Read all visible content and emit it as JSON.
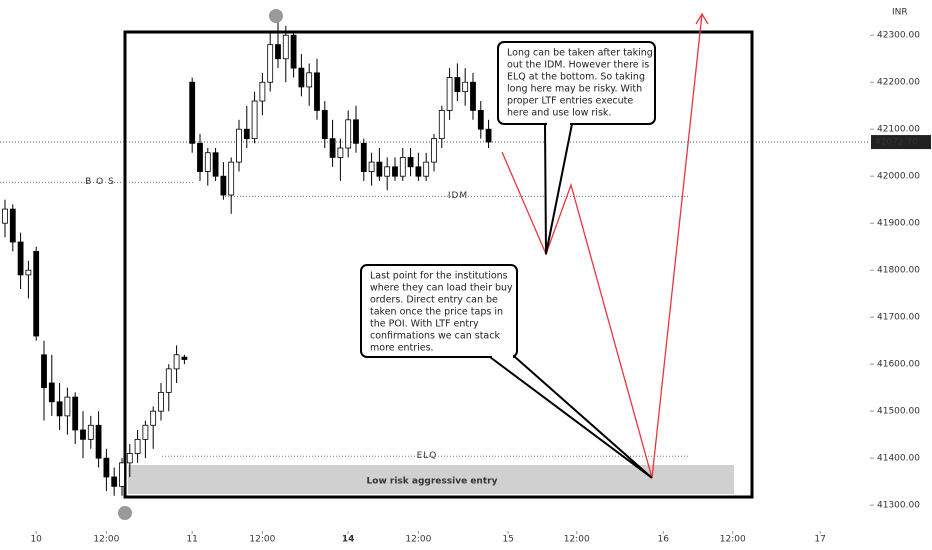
{
  "chart_data": {
    "type": "candlestick",
    "currency": "INR",
    "open": [
      41900,
      41930,
      41860,
      41790,
      41840,
      41620,
      41560,
      41520,
      41490,
      41530,
      41460,
      41440,
      41470,
      41400,
      41360,
      41340,
      41390,
      41410,
      41440,
      41470,
      41500,
      41540,
      41590,
      41615,
      42200,
      42070,
      42010,
      42050,
      42000,
      41960,
      42030,
      42100,
      42080,
      42160,
      42200,
      42280,
      42250,
      42300,
      42230,
      42190,
      42220,
      42140,
      42080,
      42040,
      42060,
      42120,
      42070,
      42010,
      42030,
      42000,
      42020,
      42000,
      42040,
      42020,
      42000,
      42030,
      42080,
      42140,
      42210,
      42180,
      42200,
      42140,
      42100
    ],
    "high": [
      41950,
      41940,
      41880,
      41820,
      41850,
      41650,
      41620,
      41560,
      41550,
      41540,
      41500,
      41490,
      41500,
      41420,
      41380,
      41400,
      41430,
      41460,
      41480,
      41510,
      41560,
      41600,
      41640,
      41620,
      42210,
      42090,
      42060,
      42060,
      42030,
      42040,
      42120,
      42150,
      42180,
      42220,
      42310,
      42340,
      42320,
      42310,
      42260,
      42240,
      42250,
      42160,
      42120,
      42080,
      42140,
      42150,
      42080,
      42050,
      42060,
      42040,
      42040,
      42060,
      42060,
      42050,
      42050,
      42090,
      42150,
      42230,
      42240,
      42230,
      42220,
      42160,
      42120
    ],
    "low": [
      41870,
      41840,
      41760,
      41740,
      41650,
      41480,
      41490,
      41460,
      41450,
      41430,
      41400,
      41420,
      41380,
      41330,
      41320,
      41320,
      41360,
      41390,
      41400,
      41420,
      41480,
      41500,
      41560,
      41600,
      42050,
      41990,
      41980,
      41990,
      41950,
      41920,
      42010,
      42060,
      42070,
      42130,
      42180,
      42230,
      42200,
      42210,
      42170,
      42150,
      42120,
      42060,
      42020,
      41990,
      42040,
      42050,
      41990,
      41980,
      41990,
      41970,
      41990,
      41990,
      42000,
      41990,
      41990,
      42010,
      42060,
      42120,
      42160,
      42150,
      42120,
      42080,
      42060
    ],
    "close": [
      41930,
      41860,
      41790,
      41800,
      41660,
      41550,
      41520,
      41490,
      41530,
      41460,
      41440,
      41470,
      41400,
      41360,
      41340,
      41390,
      41410,
      41440,
      41470,
      41500,
      41540,
      41590,
      41620,
      41610,
      42070,
      42010,
      42050,
      42000,
      41960,
      42030,
      42100,
      42080,
      42160,
      42200,
      42280,
      42250,
      42300,
      42230,
      42190,
      42220,
      42140,
      42080,
      42040,
      42060,
      42120,
      42070,
      42010,
      42030,
      42000,
      42020,
      42000,
      42040,
      42020,
      42000,
      42030,
      42080,
      42140,
      42210,
      42180,
      42200,
      42140,
      42100,
      42072.7
    ],
    "xlim": [
      -0.64,
      110.9
    ],
    "xticks": [
      {
        "value": 4,
        "label": "10"
      },
      {
        "value": 13,
        "label": "12:00"
      },
      {
        "value": 24,
        "label": "11"
      },
      {
        "value": 33,
        "label": "12:00"
      },
      {
        "value": 44,
        "label": "14"
      },
      {
        "value": 53,
        "label": "12:00"
      },
      {
        "value": 64.5,
        "label": "15"
      },
      {
        "value": 73.3,
        "label": "12:00"
      },
      {
        "value": 84.4,
        "label": "16"
      },
      {
        "value": 93.3,
        "label": "12:00"
      },
      {
        "value": 104.5,
        "label": "17"
      }
    ],
    "ylim": [
      41245,
      42375
    ],
    "yticks": [
      {
        "value": 41300,
        "label": "41300.00"
      },
      {
        "value": 41400,
        "label": "41400.00"
      },
      {
        "value": 41500,
        "label": "41500.00"
      },
      {
        "value": 41600,
        "label": "41600.00"
      },
      {
        "value": 41700,
        "label": "41700.00"
      },
      {
        "value": 41800,
        "label": "41800.00"
      },
      {
        "value": 41900,
        "label": "41900.00"
      },
      {
        "value": 42000,
        "label": "42000.00"
      },
      {
        "value": 42100,
        "label": "42100.00"
      },
      {
        "value": 42200,
        "label": "42200.00"
      },
      {
        "value": 42300,
        "label": "42300.00"
      }
    ],
    "last_price": {
      "value": 42072.7,
      "label": "42072.70"
    },
    "levels": [
      {
        "label": "B O S",
        "value": 41987
      },
      {
        "label": "IDM",
        "value": 41957
      },
      {
        "label": "ELQ",
        "value": 41404
      }
    ],
    "zone_label": "Low risk aggressive entry",
    "callouts": [
      {
        "lines": [
          "Long can be taken after taking",
          "out the IDM. However there is",
          "ELQ at the bottom. So taking",
          "long here may be risky. With",
          "proper LTF entries execute",
          "here and use low risk."
        ]
      },
      {
        "lines": [
          "Last point for the institutions",
          "where they can load their buy",
          "orders. Direct entry can be",
          "taken once the price taps in",
          "the POI. With LTF entry",
          "confirmations we can stack",
          "more entries."
        ]
      }
    ]
  }
}
